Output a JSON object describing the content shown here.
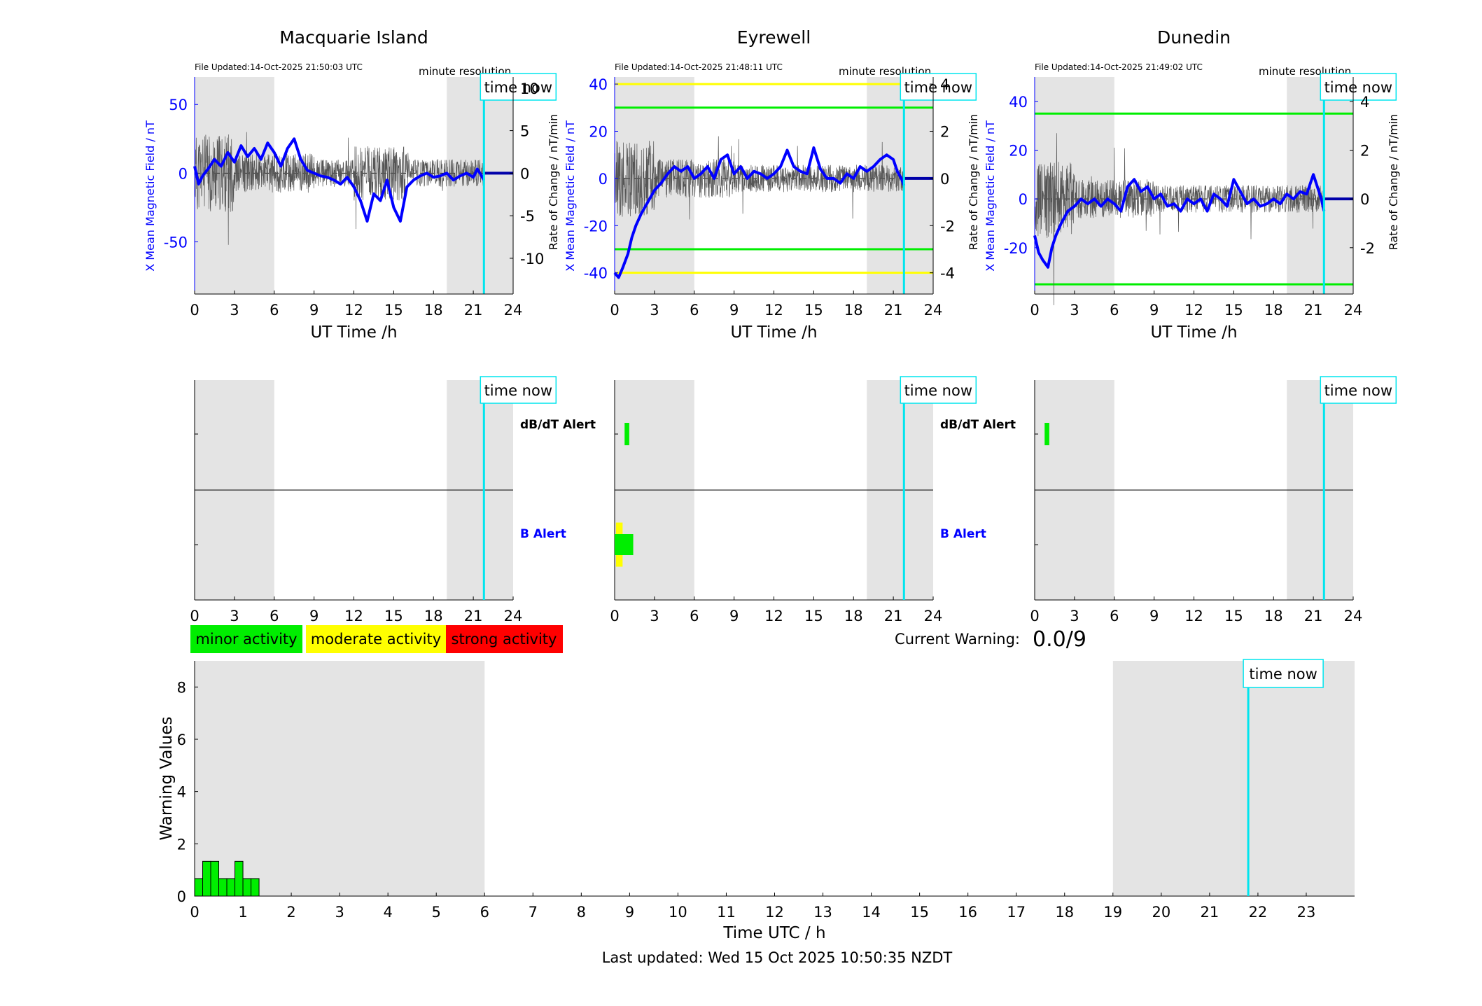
{
  "colors": {
    "night_shade": "#e4e4e4",
    "time_now_line": "#00e5ee",
    "mean_line": "#0000ff",
    "rate_line": "#555555",
    "green": "#00ee00",
    "yellow": "#ffff00",
    "red": "#ff0000",
    "axis": "#000000"
  },
  "time_now_label": "time now",
  "stations": [
    {
      "id": "macquarie",
      "title": "Macquarie Island",
      "file_updated": "File Updated:14-Oct-2025 21:50:03 UTC",
      "resolution": "minute resolution",
      "ylabel_left": "X Mean Magnetic Field / nT",
      "ylabel_right": "Rate of Change / nT/min",
      "xlabel": "UT Time /h",
      "left_ticks": [
        "50",
        "0",
        "-50"
      ],
      "right_ticks": [
        "10",
        "5",
        "0",
        "-5",
        "-10"
      ],
      "x_ticks": [
        "0",
        "3",
        "6",
        "9",
        "12",
        "15",
        "18",
        "21",
        "24"
      ]
    },
    {
      "id": "eyrewell",
      "title": "Eyrewell",
      "file_updated": "File Updated:14-Oct-2025 21:48:11 UTC",
      "resolution": "minute resolution",
      "ylabel_left": "X Mean Magnetic Field / nT",
      "ylabel_right": "Rate of Change / nT/min",
      "xlabel": "UT Time /h",
      "left_ticks": [
        "40",
        "20",
        "0",
        "-20",
        "-40"
      ],
      "right_ticks": [
        "4",
        "2",
        "0",
        "-2",
        "-4"
      ],
      "x_ticks": [
        "0",
        "3",
        "6",
        "9",
        "12",
        "15",
        "18",
        "21",
        "24"
      ]
    },
    {
      "id": "dunedin",
      "title": "Dunedin",
      "file_updated": "File Updated:14-Oct-2025 21:49:02 UTC",
      "resolution": "minute resolution",
      "ylabel_left": "X Mean Magnetic Field / nT",
      "ylabel_right": "Rate of Change / nT/min",
      "xlabel": "UT Time /h",
      "left_ticks": [
        "40",
        "20",
        "0",
        "-20"
      ],
      "right_ticks": [
        "4",
        "2",
        "0",
        "-2"
      ],
      "x_ticks": [
        "0",
        "3",
        "6",
        "9",
        "12",
        "15",
        "18",
        "21",
        "24"
      ]
    }
  ],
  "alerts": {
    "dbdt_label": "dB/dT Alert",
    "b_label": "B Alert"
  },
  "legend": {
    "minor": "minor activity",
    "moderate": "moderate activity",
    "strong": "strong activity"
  },
  "current_warning": {
    "label": "Current Warning:",
    "value": "0.0/9"
  },
  "warning_chart": {
    "ylabel": "Warning Values",
    "xlabel": "Time UTC / h",
    "y_ticks": [
      "8",
      "6",
      "4",
      "2",
      "0"
    ],
    "x_ticks": [
      "0",
      "1",
      "2",
      "3",
      "4",
      "5",
      "6",
      "7",
      "8",
      "9",
      "10",
      "11",
      "12",
      "13",
      "14",
      "15",
      "16",
      "17",
      "18",
      "19",
      "20",
      "21",
      "22",
      "23"
    ]
  },
  "footer": "Last updated: Wed 15 Oct 2025 10:50:35 NZDT",
  "chart_data": [
    {
      "type": "line",
      "station": "Macquarie Island",
      "xlabel": "UT Time /h",
      "ylabel": "X Mean Magnetic Field / nT",
      "ylabel_right": "Rate of Change / nT/min",
      "xlim": [
        0,
        24
      ],
      "ylim": [
        -88,
        70
      ],
      "ylim_right": [
        -14.2,
        11.3
      ],
      "night_shading_h": [
        [
          0,
          6
        ],
        [
          19,
          24
        ]
      ],
      "time_now_h": 21.8,
      "series": [
        {
          "name": "X Mean Magnetic Field / nT",
          "x": [
            0,
            0.3,
            0.6,
            1,
            1.5,
            2,
            2.5,
            3,
            3.5,
            4,
            4.5,
            5,
            5.5,
            6,
            6.5,
            7,
            7.5,
            8,
            8.5,
            9,
            9.5,
            10,
            10.5,
            11,
            11.5,
            12,
            12.5,
            13,
            13.5,
            14,
            14.5,
            15,
            15.5,
            16,
            16.5,
            17,
            17.5,
            18,
            18.5,
            19,
            19.5,
            20,
            20.5,
            21,
            21.3,
            21.5,
            21.8
          ],
          "values": [
            5,
            -8,
            -2,
            3,
            10,
            5,
            15,
            8,
            20,
            12,
            18,
            10,
            22,
            15,
            5,
            18,
            25,
            10,
            2,
            0,
            -2,
            -3,
            -5,
            -8,
            -3,
            -10,
            -20,
            -35,
            -15,
            -20,
            -5,
            -25,
            -35,
            -10,
            -5,
            -2,
            0,
            -3,
            -2,
            0,
            -5,
            -2,
            0,
            -3,
            3,
            0,
            -5
          ]
        },
        {
          "name": "Rate of Change / nT/min",
          "x": [
            0,
            24
          ],
          "values": [
            0,
            0
          ]
        }
      ]
    },
    {
      "type": "line",
      "station": "Eyrewell",
      "xlabel": "UT Time /h",
      "ylabel": "X Mean Magnetic Field / nT",
      "ylabel_right": "Rate of Change / nT/min",
      "xlim": [
        0,
        24
      ],
      "ylim": [
        -49,
        43
      ],
      "ylim_right": [
        -4.9,
        4.3
      ],
      "night_shading_h": [
        [
          0,
          6
        ],
        [
          19,
          24
        ]
      ],
      "time_now_h": 21.8,
      "thresholds_nT": [
        {
          "level": "yellow",
          "values": [
            40,
            -40
          ]
        },
        {
          "level": "green",
          "values": [
            30,
            -30
          ]
        }
      ],
      "series": [
        {
          "name": "X Mean Magnetic Field / nT",
          "x": [
            0,
            0.3,
            0.6,
            1,
            1.3,
            1.6,
            2,
            2.5,
            3,
            3.5,
            4,
            4.5,
            5,
            5.5,
            6,
            6.5,
            7,
            7.5,
            8,
            8.5,
            9,
            9.5,
            10,
            10.5,
            11,
            11.5,
            12,
            12.5,
            13,
            13.5,
            14,
            14.5,
            15,
            15.5,
            16,
            16.5,
            17,
            17.5,
            18,
            18.5,
            19,
            19.5,
            20,
            20.5,
            21,
            21.3,
            21.6,
            21.8
          ],
          "values": [
            -40,
            -42,
            -38,
            -32,
            -25,
            -20,
            -15,
            -10,
            -5,
            -2,
            2,
            5,
            3,
            5,
            0,
            2,
            5,
            0,
            8,
            10,
            2,
            5,
            0,
            3,
            2,
            0,
            2,
            5,
            12,
            5,
            3,
            2,
            13,
            4,
            0,
            0,
            -2,
            2,
            0,
            5,
            3,
            5,
            8,
            10,
            8,
            3,
            0,
            -3
          ]
        },
        {
          "name": "Rate of Change / nT/min",
          "x": [
            0,
            24
          ],
          "values": [
            0,
            0
          ]
        }
      ]
    },
    {
      "type": "line",
      "station": "Dunedin",
      "xlabel": "UT Time /h",
      "ylabel": "X Mean Magnetic Field / nT",
      "ylabel_right": "Rate of Change / nT/min",
      "xlim": [
        0,
        24
      ],
      "ylim": [
        -39,
        50
      ],
      "ylim_right": [
        -3.9,
        5.0
      ],
      "night_shading_h": [
        [
          0,
          6
        ],
        [
          19,
          24
        ]
      ],
      "time_now_h": 21.8,
      "thresholds_nT": [
        {
          "level": "green",
          "values": [
            35,
            -35
          ]
        }
      ],
      "series": [
        {
          "name": "X Mean Magnetic Field / nT",
          "x": [
            0,
            0.3,
            0.6,
            1,
            1.3,
            1.6,
            2,
            2.5,
            3,
            3.5,
            4,
            4.5,
            5,
            5.5,
            6,
            6.5,
            7,
            7.5,
            8,
            8.5,
            9,
            9.5,
            10,
            10.5,
            11,
            11.5,
            12,
            12.5,
            13,
            13.5,
            14,
            14.5,
            15,
            15.5,
            16,
            16.5,
            17,
            17.5,
            18,
            18.5,
            19,
            19.5,
            20,
            20.5,
            21,
            21.3,
            21.6,
            21.8
          ],
          "values": [
            -15,
            -22,
            -25,
            -28,
            -20,
            -15,
            -10,
            -5,
            -3,
            0,
            -2,
            0,
            -3,
            0,
            -2,
            -5,
            5,
            8,
            3,
            5,
            0,
            2,
            -3,
            -2,
            -5,
            0,
            -2,
            0,
            -5,
            2,
            0,
            -3,
            8,
            3,
            -2,
            0,
            -3,
            -2,
            0,
            -2,
            2,
            0,
            3,
            2,
            10,
            5,
            0,
            -5
          ]
        },
        {
          "name": "Rate of Change / nT/min",
          "x": [
            0,
            24
          ],
          "values": [
            0,
            0
          ]
        }
      ]
    },
    {
      "type": "bar",
      "title": "Eyrewell B Alert",
      "xlim": [
        0,
        24
      ],
      "bars": [
        {
          "x_start": 0.1,
          "x_end": 0.6,
          "level": "yellow"
        },
        {
          "x_start": 0.0,
          "x_end": 1.4,
          "level": "green"
        }
      ]
    },
    {
      "type": "bar",
      "title": "Eyrewell dB/dT Alert",
      "xlim": [
        0,
        24
      ],
      "bars": [
        {
          "x_start": 0.75,
          "x_end": 1.1,
          "level": "green"
        }
      ]
    },
    {
      "type": "bar",
      "title": "Dunedin dB/dT Alert",
      "xlim": [
        0,
        24
      ],
      "bars": [
        {
          "x_start": 0.75,
          "x_end": 1.1,
          "level": "green"
        }
      ]
    },
    {
      "type": "bar",
      "xlabel": "Time UTC / h",
      "ylabel": "Warning Values",
      "xlim": [
        0,
        24
      ],
      "ylim": [
        0,
        9
      ],
      "night_shading_h": [
        [
          0,
          6
        ],
        [
          19,
          24
        ]
      ],
      "time_now_h": 21.8,
      "bin_width_h": 0.1667,
      "x": [
        0,
        0.1667,
        0.3333,
        0.5,
        0.6667,
        0.8333,
        1.0,
        1.1667
      ],
      "values": [
        0.67,
        1.33,
        1.33,
        0.67,
        0.67,
        1.33,
        0.67,
        0.67
      ]
    }
  ]
}
